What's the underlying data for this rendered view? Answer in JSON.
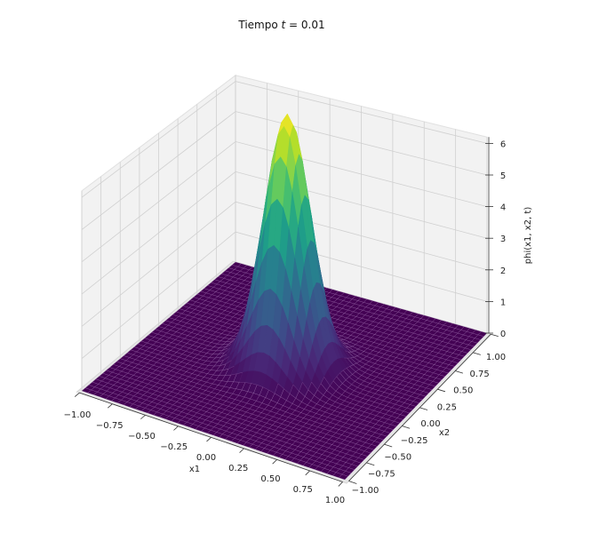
{
  "chart_data": {
    "type": "surface3d",
    "title_prefix": "Tiempo ",
    "title_var": "t",
    "title_suffix": " = 0.01",
    "xlabel": "x1",
    "ylabel": "x2",
    "zlabel": "phi(x1, x2, t)",
    "xlim": [
      -1,
      1
    ],
    "ylim": [
      -1,
      1
    ],
    "zlim": [
      0,
      6.2
    ],
    "x_ticks": [
      "−1.00",
      "−0.75",
      "−0.50",
      "−0.25",
      "0.00",
      "0.25",
      "0.50",
      "0.75",
      "1.00"
    ],
    "y_ticks": [
      "−1.00",
      "−0.75",
      "−0.50",
      "−0.25",
      "0.00",
      "0.25",
      "0.50",
      "0.75",
      "1.00"
    ],
    "z_ticks": [
      "0",
      "1",
      "2",
      "3",
      "4",
      "5",
      "6"
    ],
    "colormap": "viridis",
    "surface": {
      "shape": "single peak",
      "peak_x1": 0.0,
      "peak_x2": 0.0,
      "peak_value": 7.8,
      "spread": 0.16,
      "baseline": 0.0
    },
    "grid": true,
    "pane_color": "#f2f2f2"
  }
}
